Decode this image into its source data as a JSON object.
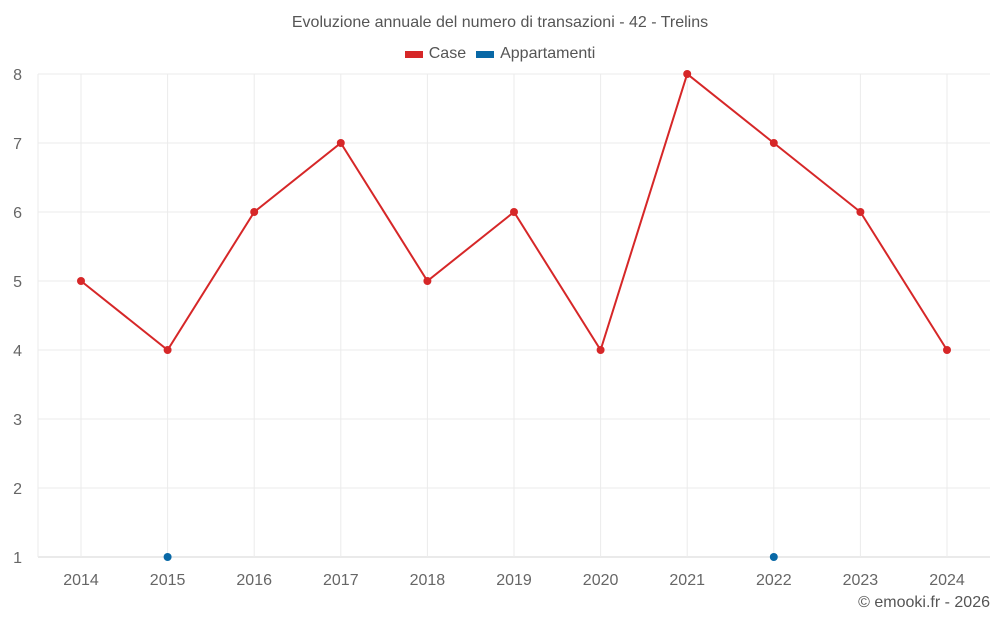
{
  "chart_data": {
    "type": "line",
    "title": "Evoluzione annuale del numero di transazioni - 42 - Trelins",
    "xlabel": "",
    "ylabel": "",
    "categories": [
      "2014",
      "2015",
      "2016",
      "2017",
      "2018",
      "2019",
      "2020",
      "2021",
      "2022",
      "2023",
      "2024"
    ],
    "series": [
      {
        "name": "Case",
        "color": "#d62728",
        "values": [
          5,
          4,
          6,
          7,
          5,
          6,
          4,
          8,
          7,
          6,
          4
        ]
      },
      {
        "name": "Appartamenti",
        "color": "#0868a6",
        "values": [
          null,
          1,
          null,
          null,
          null,
          null,
          null,
          null,
          1,
          null,
          null
        ]
      }
    ],
    "ylim": [
      1,
      8
    ],
    "yticks": [
      1,
      2,
      3,
      4,
      5,
      6,
      7,
      8
    ],
    "grid": true,
    "legend_position": "top"
  },
  "legend": {
    "items": [
      {
        "label": "Case",
        "color": "#d62728"
      },
      {
        "label": "Appartamenti",
        "color": "#0868a6"
      }
    ]
  },
  "footer": {
    "credit": "© emooki.fr - 2026"
  }
}
